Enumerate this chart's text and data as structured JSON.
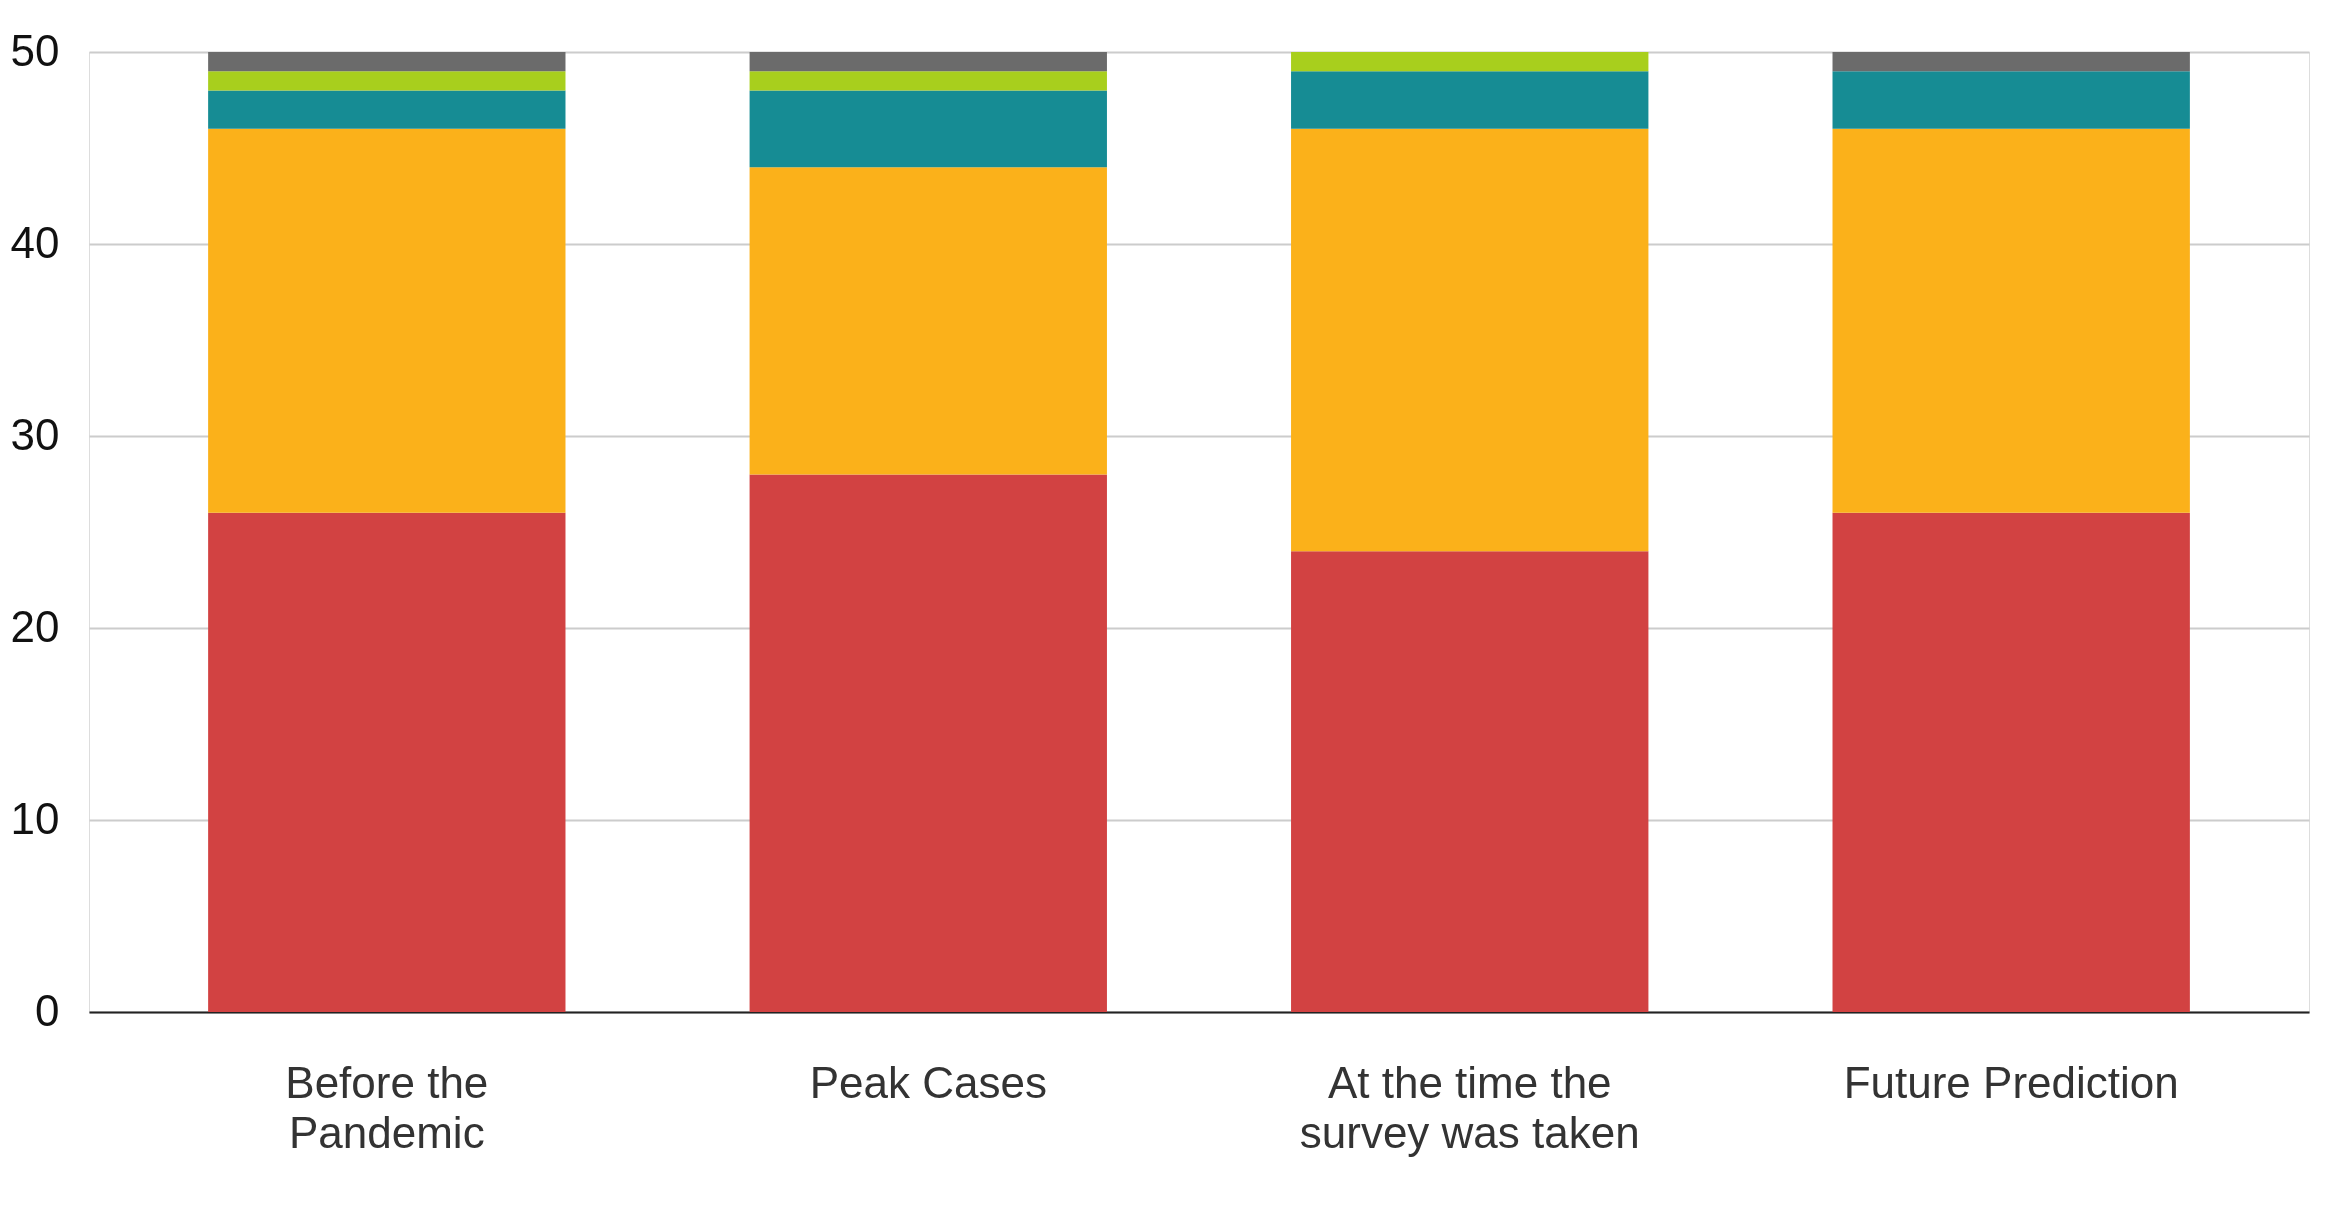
{
  "chart_data": {
    "type": "bar",
    "stacked": true,
    "categories": [
      "Before the Pandemic",
      "Peak Cases",
      "At the time the survey was taken",
      "Future Prediction"
    ],
    "series": [
      {
        "color": "#d24242",
        "values": [
          26,
          28,
          24,
          26
        ]
      },
      {
        "color": "#fbb11a",
        "values": [
          20,
          16,
          22,
          20
        ]
      },
      {
        "color": "#168c94",
        "values": [
          2,
          4,
          3,
          3
        ]
      },
      {
        "color": "#a8cf1d",
        "values": [
          1,
          1,
          1,
          0
        ]
      },
      {
        "color": "#6b6b6b",
        "values": [
          1,
          1,
          0,
          1
        ]
      }
    ],
    "ylim": [
      0,
      50
    ],
    "yticks": [
      0,
      10,
      20,
      30,
      40,
      50
    ],
    "grid": "y"
  }
}
